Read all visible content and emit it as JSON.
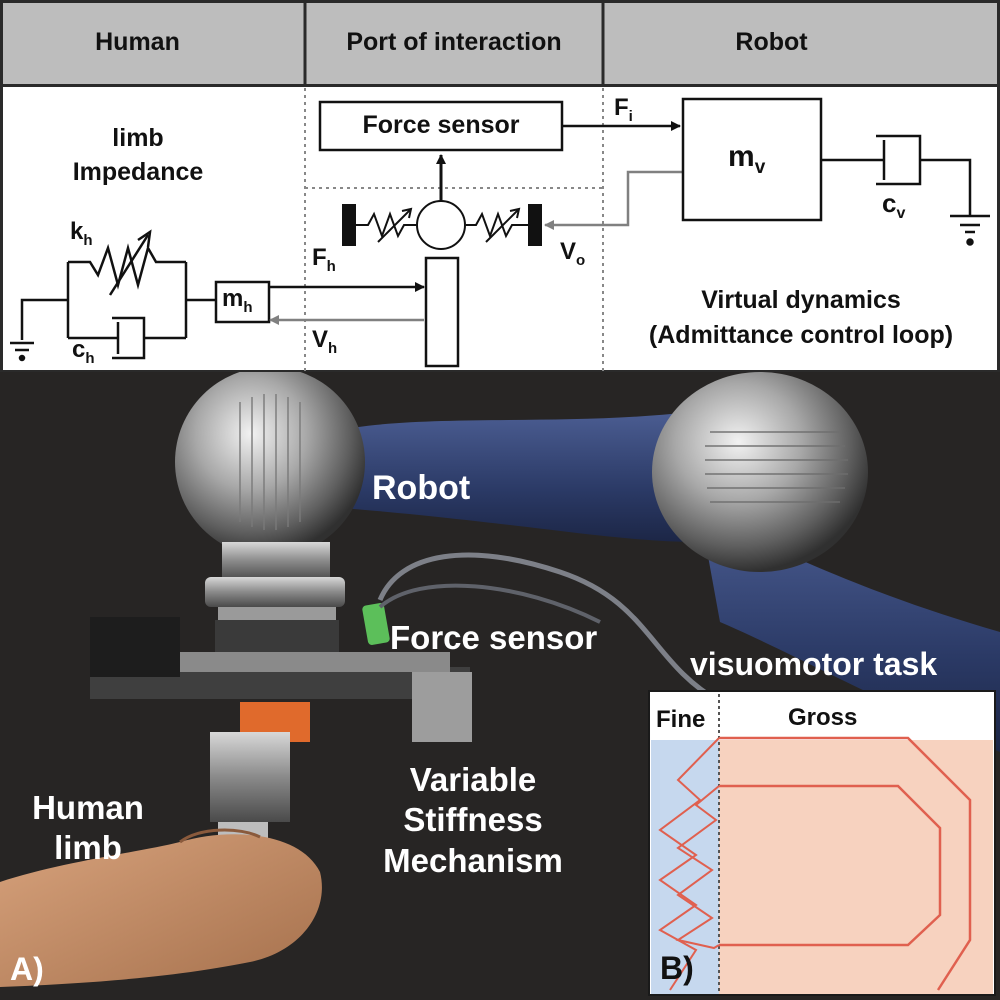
{
  "header": {
    "human": "Human",
    "port": "Port of interaction",
    "robot": "Robot"
  },
  "diagram": {
    "limb_impedance_line1": "limb",
    "limb_impedance_line2": "Impedance",
    "k_h": "k",
    "k_h_sub": "h",
    "c_h": "c",
    "c_h_sub": "h",
    "m_h": "m",
    "m_h_sub": "h",
    "f_h": "F",
    "f_h_sub": "h",
    "v_h": "V",
    "v_h_sub": "h",
    "force_sensor": "Force sensor",
    "f_i": "F",
    "f_i_sub": "i",
    "v_o": "V",
    "v_o_sub": "o",
    "m_v": "m",
    "m_v_sub": "v",
    "c_v": "c",
    "c_v_sub": "v",
    "virtual_dynamics_line1": "Virtual dynamics",
    "virtual_dynamics_line2": "(Admittance control loop)"
  },
  "photo": {
    "robot": "Robot",
    "force_sensor": "Force sensor",
    "visuomotor_task": "visuomotor task",
    "human_limb_line1": "Human",
    "human_limb_line2": "limb",
    "vsm_line1": "Variable",
    "vsm_line2": "Stiffness",
    "vsm_line3": "Mechanism",
    "panel_a": "A)",
    "panel_b": "B)"
  },
  "inset": {
    "fine": "Fine",
    "gross": "Gross"
  },
  "colors": {
    "header_bg": "#bdbdbd",
    "robot_arm_blue": "#2f3f6e",
    "task_path_red": "#e0604f",
    "fine_region": "#c6d8ee",
    "gross_region": "#f7d2bf"
  }
}
